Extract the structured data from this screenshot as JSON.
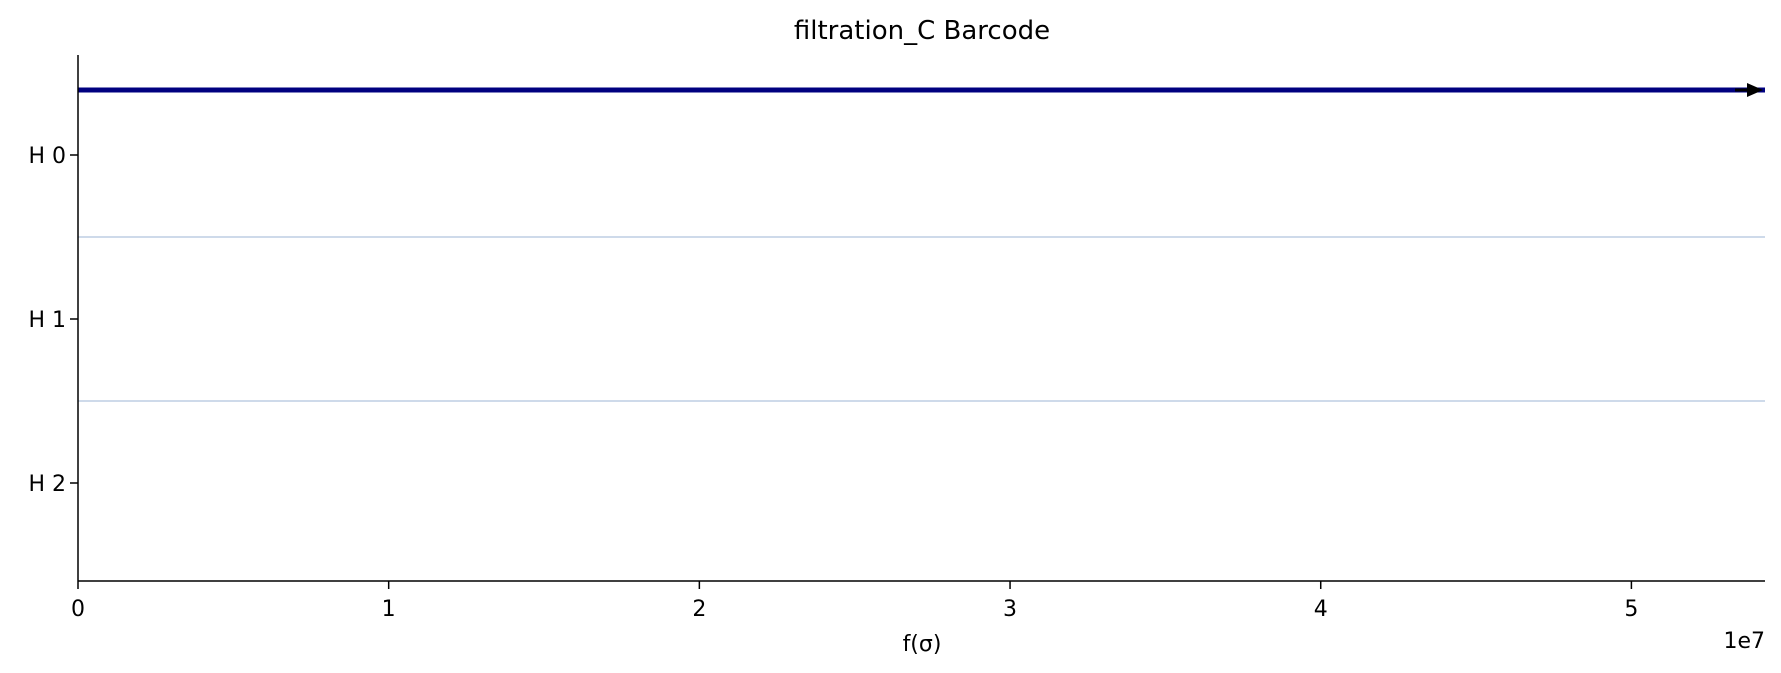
{
  "chart_data": {
    "type": "barcode",
    "title": "filtration_C Barcode",
    "xlabel": "f(σ)",
    "x_offset_label": "1e7",
    "x_scale": 10000000,
    "xlim": [
      0,
      54300000
    ],
    "x_ticks": [
      0,
      1,
      2,
      3,
      4,
      5
    ],
    "x_tick_labels": [
      "0",
      "1",
      "2",
      "3",
      "4",
      "5"
    ],
    "dimensions": [
      "H 0",
      "H 1",
      "H 2"
    ],
    "bars": [
      {
        "dimension": 0,
        "birth": 0,
        "death": null,
        "infinite": true,
        "color": "#000080"
      }
    ],
    "grid": false,
    "separator_color": "#b0c4de",
    "infinite_arrow_color": "#000000"
  }
}
